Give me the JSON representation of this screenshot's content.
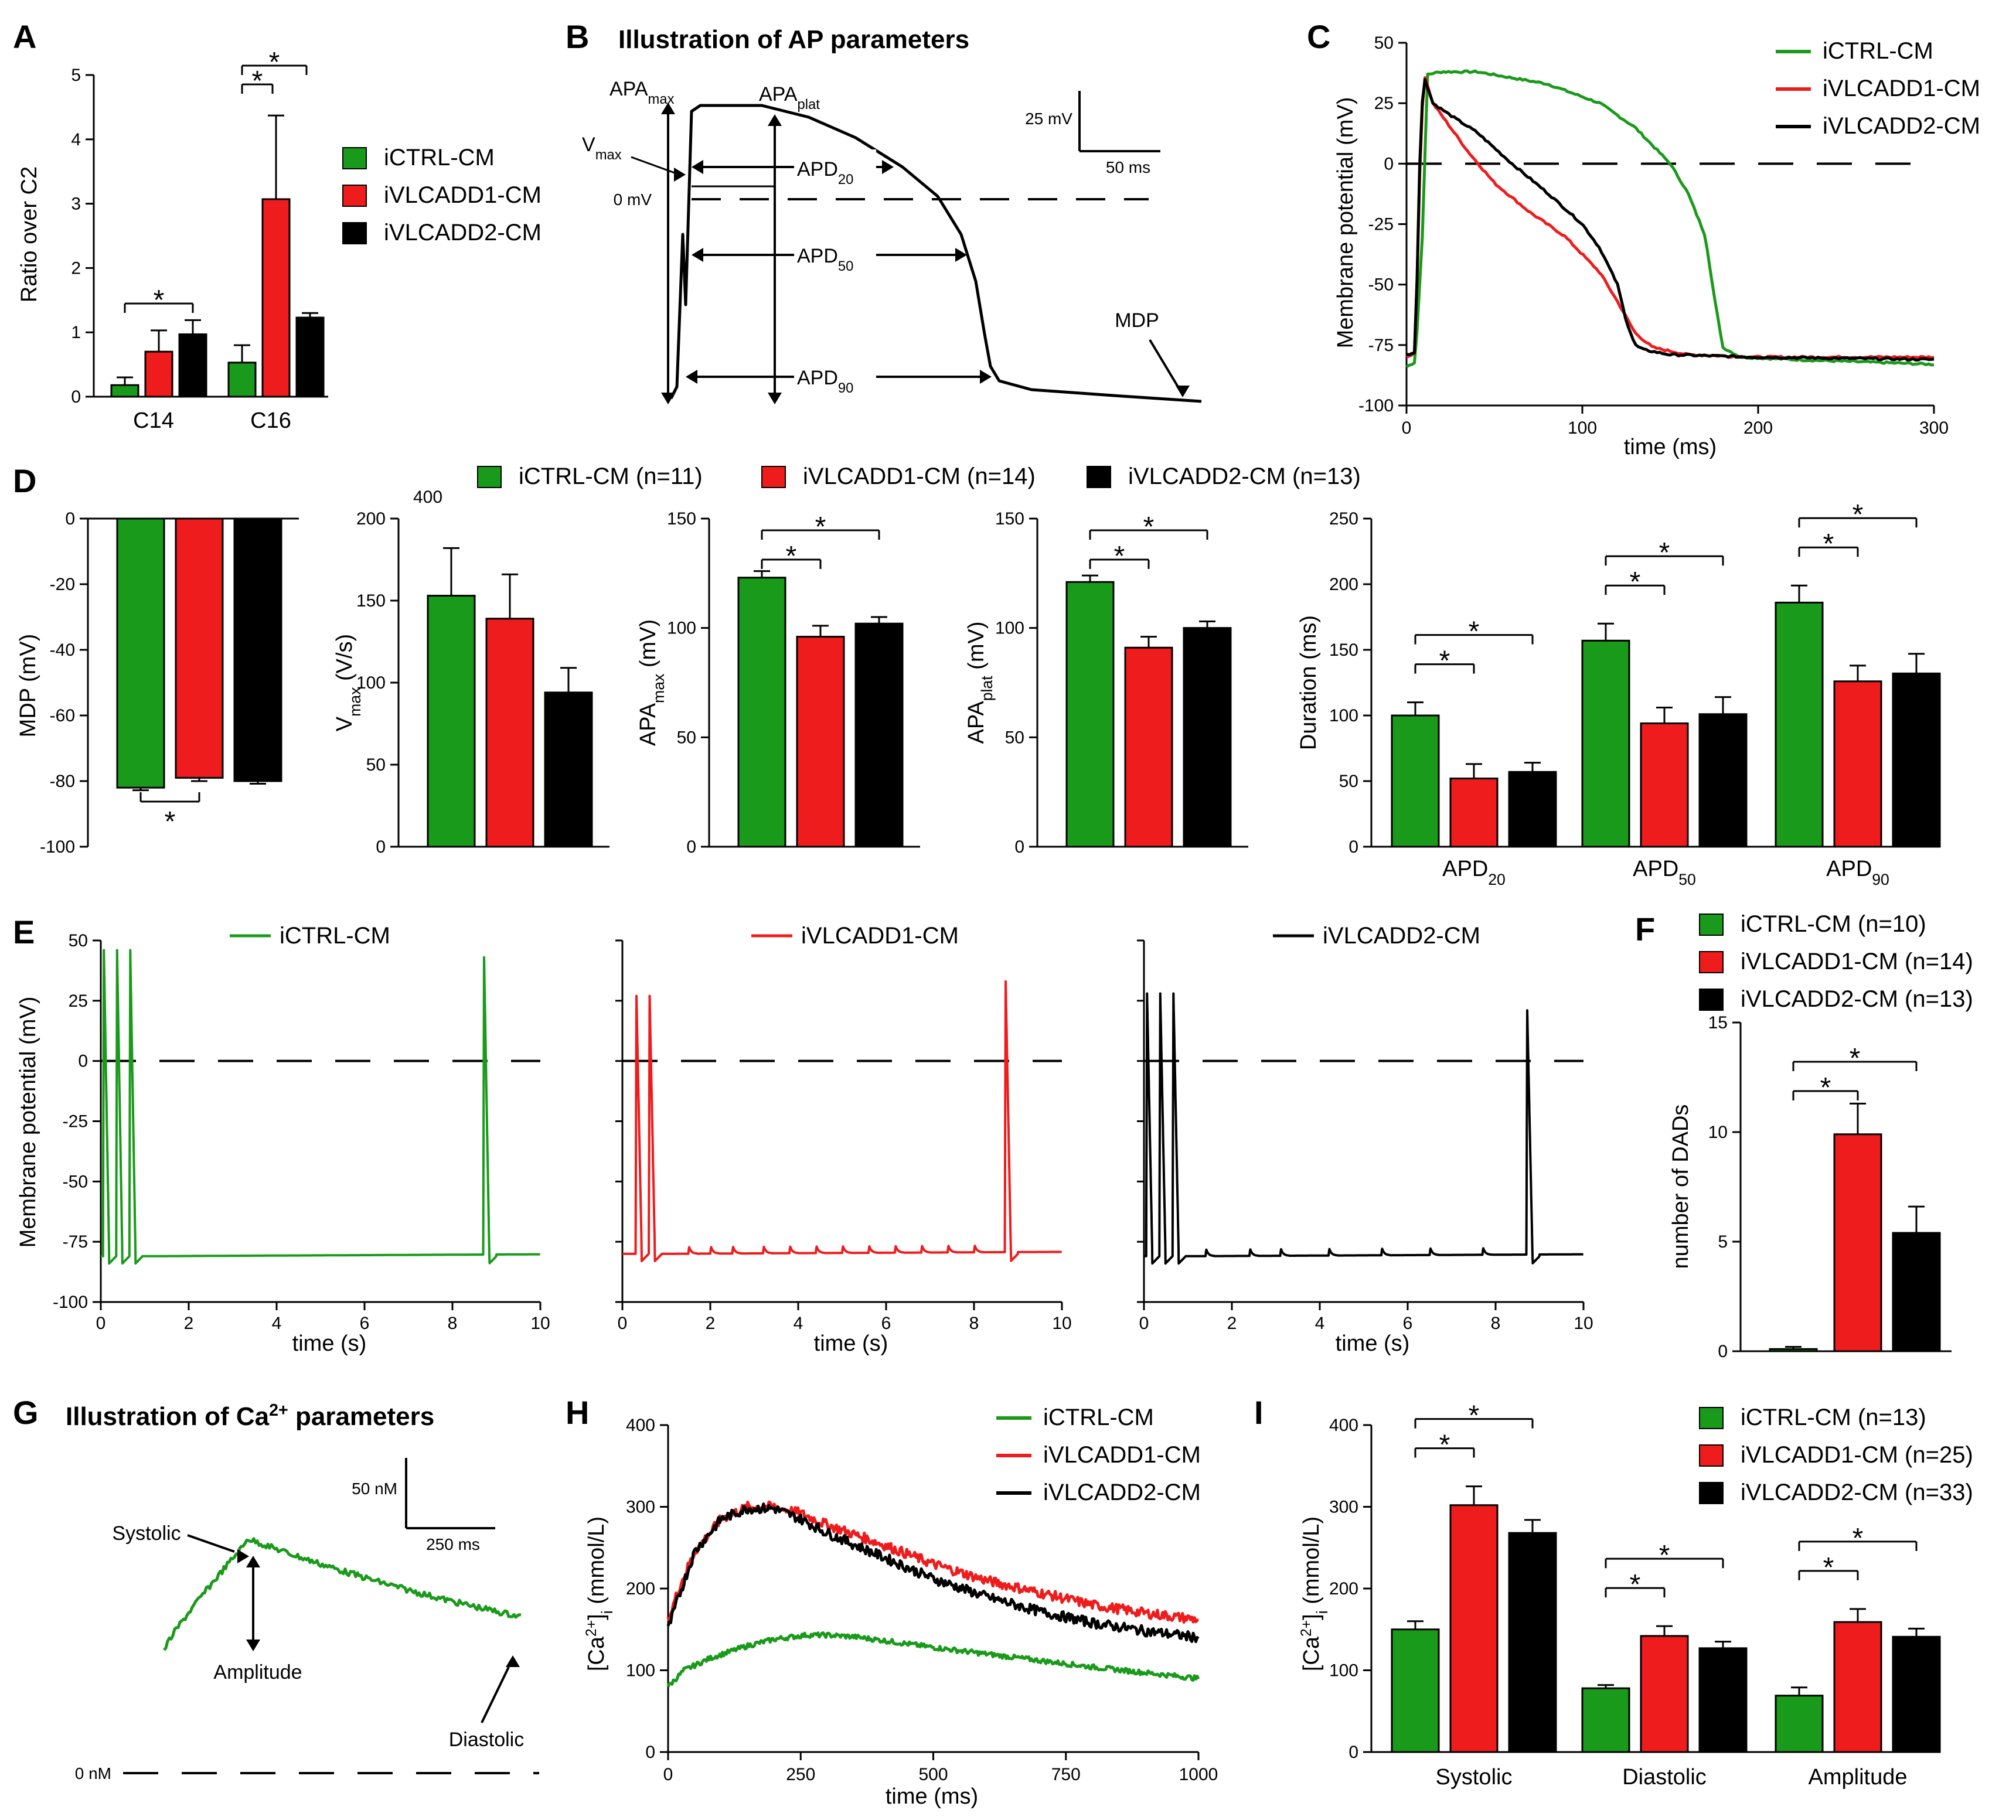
{
  "colors": {
    "green": "#1a9a1a",
    "red": "#ee1c1c",
    "black": "#000000"
  },
  "panel_letters": [
    "A",
    "B",
    "C",
    "D",
    "E",
    "F",
    "G",
    "H",
    "I"
  ],
  "groups": [
    "iCTRL-CM",
    "iVLCADD1-CM",
    "iVLCADD2-CM"
  ],
  "chart_data": [
    {
      "id": "A",
      "type": "bar",
      "ylabel": "Ratio over C2",
      "ylim": [
        0,
        5
      ],
      "yticks": [
        "0",
        "1",
        "2",
        "3",
        "4",
        "5"
      ],
      "categories": [
        "C14",
        "C16"
      ],
      "series": [
        {
          "name": "iCTRL-CM",
          "values": [
            0.18,
            0.53
          ],
          "errors": [
            0.12,
            0.27
          ]
        },
        {
          "name": "iVLCADD1-CM",
          "values": [
            0.7,
            3.07
          ],
          "errors": [
            0.33,
            1.3
          ]
        },
        {
          "name": "iVLCADD2-CM",
          "values": [
            0.97,
            1.23
          ],
          "errors": [
            0.22,
            0.07
          ]
        }
      ],
      "legend": [
        "iCTRL-CM",
        "iVLCADD1-CM",
        "iVLCADD2-CM"
      ],
      "sig_marks": [
        "*",
        "*",
        "*"
      ]
    },
    {
      "id": "B",
      "type": "illustration",
      "title": "Illustration of AP parameters",
      "labels": {
        "apamax": "APA",
        "apamax_sub": "max",
        "apaplat": "APA",
        "apaplat_sub": "plat",
        "vmax": "V",
        "vmax_sub": "max",
        "zero": "0 mV",
        "apd20": "APD",
        "apd20_sub": "20",
        "apd50": "APD",
        "apd50_sub": "50",
        "apd90": "APD",
        "apd90_sub": "90",
        "mdp": "MDP",
        "scale_v": "25 mV",
        "scale_t": "50 ms"
      }
    },
    {
      "id": "C",
      "type": "line",
      "xlabel": "time (ms)",
      "ylabel": "Membrane potential (mV)",
      "xlim": [
        0,
        300
      ],
      "ylim": [
        -100,
        50
      ],
      "xticks": [
        "0",
        "100",
        "200",
        "300"
      ],
      "yticks": [
        "50",
        "25",
        "0",
        "-25",
        "-50",
        "-75",
        "-100"
      ],
      "series": [
        {
          "name": "iCTRL-CM",
          "x": [
            0,
            5,
            9,
            12,
            20,
            40,
            80,
            110,
            130,
            150,
            160,
            170,
            175,
            180,
            190,
            220,
            260,
            300
          ],
          "y": [
            -84,
            -82,
            -30,
            37,
            38,
            38,
            33,
            25,
            15,
            0,
            -12,
            -30,
            -55,
            -76,
            -80,
            -81,
            -82,
            -83
          ]
        },
        {
          "name": "iVLCADD1-CM",
          "x": [
            0,
            5,
            8,
            10,
            15,
            25,
            35,
            50,
            70,
            90,
            110,
            120,
            130,
            140,
            160,
            200,
            300
          ],
          "y": [
            -80,
            -78,
            10,
            37,
            25,
            15,
            5,
            -8,
            -20,
            -30,
            -45,
            -57,
            -70,
            -76,
            -79,
            -80,
            -80
          ]
        },
        {
          "name": "iVLCADD2-CM",
          "x": [
            0,
            5,
            8,
            10,
            15,
            25,
            40,
            60,
            80,
            100,
            110,
            120,
            125,
            130,
            135,
            150,
            200,
            300
          ],
          "y": [
            -79,
            -78,
            15,
            36,
            25,
            20,
            13,
            0,
            -12,
            -25,
            -35,
            -50,
            -65,
            -75,
            -77,
            -79,
            -80,
            -81
          ]
        }
      ],
      "legend": [
        "iCTRL-CM",
        "iVLCADD1-CM",
        "iVLCADD2-CM"
      ]
    },
    {
      "id": "D",
      "type": "bar",
      "legend": [
        "iCTRL-CM (n=11)",
        "iVLCADD1-CM (n=14)",
        "iVLCADD2-CM (n=13)"
      ],
      "subplots": [
        {
          "ylabel": "MDP (mV)",
          "ylim": [
            -100,
            0
          ],
          "yticks": [
            "0",
            "-20",
            "-40",
            "-60",
            "-80",
            "-100"
          ],
          "values": [
            -82,
            -79,
            -80
          ],
          "errors": [
            0.8,
            1.0,
            0.8
          ],
          "sig_marks": [
            "*"
          ]
        },
        {
          "ylabel": "V",
          "ylabel_sub": "max",
          "ylabel_unit": "(V/s)",
          "ylim": [
            0,
            200
          ],
          "extra_tick": "400",
          "yticks": [
            "0",
            "50",
            "100",
            "150",
            "200"
          ],
          "values": [
            153,
            139,
            94
          ],
          "errors": [
            29,
            27,
            15
          ],
          "sig_marks": []
        },
        {
          "ylabel": "APA",
          "ylabel_sub": "max",
          "ylabel_unit": "(mV)",
          "ylim": [
            0,
            150
          ],
          "yticks": [
            "0",
            "50",
            "100",
            "150"
          ],
          "values": [
            123,
            96,
            102
          ],
          "errors": [
            3,
            5,
            3
          ],
          "sig_marks": [
            "*",
            "*"
          ]
        },
        {
          "ylabel": "APA",
          "ylabel_sub": "plat",
          "ylabel_unit": "(mV)",
          "ylim": [
            0,
            150
          ],
          "yticks": [
            "0",
            "50",
            "100",
            "150"
          ],
          "values": [
            121,
            91,
            100
          ],
          "errors": [
            3,
            5,
            3
          ],
          "sig_marks": [
            "*",
            "*"
          ]
        },
        {
          "ylabel": "Duration (ms)",
          "ylim": [
            0,
            250
          ],
          "yticks": [
            "0",
            "50",
            "100",
            "150",
            "200",
            "250"
          ],
          "categories": [
            "APD",
            "APD",
            "APD"
          ],
          "category_subs": [
            "20",
            "50",
            "90"
          ],
          "series": [
            {
              "name": "iCTRL-CM",
              "values": [
                100,
                157,
                186
              ],
              "errors": [
                10,
                13,
                13
              ]
            },
            {
              "name": "iVLCADD1-CM",
              "values": [
                52,
                94,
                126
              ],
              "errors": [
                11,
                12,
                12
              ]
            },
            {
              "name": "iVLCADD2-CM",
              "values": [
                57,
                101,
                132
              ],
              "errors": [
                7,
                13,
                15
              ]
            }
          ],
          "sig_marks": [
            "*",
            "*",
            "*",
            "*",
            "*",
            "*"
          ]
        }
      ]
    },
    {
      "id": "E",
      "type": "line",
      "ylabel": "Membrane potential (mV)",
      "xlabel": "time (s)",
      "xlim": [
        0,
        10
      ],
      "ylim": [
        -100,
        50
      ],
      "xticks": [
        "0",
        "2",
        "4",
        "6",
        "8",
        "10"
      ],
      "yticks": [
        "50",
        "25",
        "0",
        "-25",
        "-50",
        "-75",
        "-100"
      ],
      "traces": [
        {
          "name": "iCTRL-CM",
          "spike_times": [
            0.05,
            0.35,
            0.65,
            8.7
          ],
          "spike_peaks": [
            46,
            46,
            46,
            43
          ],
          "rest": -81,
          "dad_times": []
        },
        {
          "name": "iVLCADD1-CM",
          "spike_times": [
            0.3,
            0.6,
            8.7
          ],
          "spike_peaks": [
            27,
            27,
            33
          ],
          "rest": -80,
          "dad_times": [
            1.5,
            2.0,
            2.5,
            3.2,
            3.8,
            4.4,
            5.0,
            5.6,
            6.2,
            6.8,
            7.4,
            8.0
          ]
        },
        {
          "name": "iVLCADD2-CM",
          "spike_times": [
            0.05,
            0.35,
            0.65,
            8.7
          ],
          "spike_peaks": [
            28,
            28,
            28,
            21
          ],
          "rest": -81,
          "dad_times": [
            1.4,
            2.4,
            3.1,
            4.2,
            5.4,
            6.5,
            7.7
          ]
        }
      ]
    },
    {
      "id": "F",
      "type": "bar",
      "ylabel": "number of DADs",
      "ylim": [
        0,
        15
      ],
      "yticks": [
        "0",
        "5",
        "10",
        "15"
      ],
      "values": [
        0.1,
        9.9,
        5.4
      ],
      "errors": [
        0.1,
        1.4,
        1.2
      ],
      "legend": [
        "iCTRL-CM (n=10)",
        "iVLCADD1-CM (n=14)",
        "iVLCADD2-CM (n=13)"
      ],
      "sig_marks": [
        "*",
        "*"
      ]
    },
    {
      "id": "G",
      "type": "illustration",
      "title": "Illustration of Ca",
      "title_sup": "2+",
      "title_end": " parameters",
      "labels": {
        "systolic": "Systolic",
        "amplitude": "Amplitude",
        "diastolic": "Diastolic",
        "zero": "0 nM",
        "scale_c": "50 nM",
        "scale_t": "250 ms"
      }
    },
    {
      "id": "H",
      "type": "line",
      "xlabel": "time (ms)",
      "ylabel": "[Ca",
      "ylabel_sup": "2+",
      "ylabel_mid": "]",
      "ylabel_sub": "i",
      "ylabel_unit": " (mmol/L)",
      "xlim": [
        0,
        1000
      ],
      "ylim": [
        0,
        400
      ],
      "xticks": [
        "0",
        "250",
        "500",
        "750",
        "1000"
      ],
      "yticks": [
        "0",
        "100",
        "200",
        "300",
        "400"
      ],
      "series": [
        {
          "name": "iCTRL-CM",
          "x": [
            0,
            30,
            80,
            150,
            200,
            260,
            300,
            350,
            400,
            500,
            600,
            700,
            800,
            900,
            1000
          ],
          "y": [
            80,
            100,
            115,
            130,
            138,
            143,
            143,
            141,
            137,
            128,
            120,
            112,
            104,
            97,
            90
          ]
        },
        {
          "name": "iVLCADD1-CM",
          "x": [
            0,
            20,
            50,
            100,
            150,
            200,
            250,
            300,
            400,
            500,
            600,
            700,
            800,
            900,
            1000
          ],
          "y": [
            160,
            200,
            245,
            285,
            300,
            300,
            292,
            278,
            255,
            230,
            210,
            195,
            180,
            170,
            162
          ]
        },
        {
          "name": "iVLCADD2-CM",
          "x": [
            0,
            20,
            50,
            100,
            150,
            200,
            250,
            300,
            400,
            500,
            600,
            700,
            800,
            900,
            1000
          ],
          "y": [
            150,
            190,
            245,
            285,
            298,
            298,
            285,
            268,
            240,
            212,
            190,
            172,
            158,
            148,
            140
          ]
        }
      ],
      "legend": [
        "iCTRL-CM",
        "iVLCADD1-CM",
        "iVLCADD2-CM"
      ]
    },
    {
      "id": "I",
      "type": "bar",
      "ylabel": "[Ca",
      "ylabel_sup": "2+",
      "ylabel_mid": "]",
      "ylabel_sub": "i",
      "ylabel_unit": " (mmol/L)",
      "ylim": [
        0,
        400
      ],
      "yticks": [
        "0",
        "100",
        "200",
        "300",
        "400"
      ],
      "categories": [
        "Systolic",
        "Diastolic",
        "Amplitude"
      ],
      "series": [
        {
          "name": "iCTRL-CM",
          "values": [
            150,
            78,
            69
          ],
          "errors": [
            10,
            4,
            10
          ]
        },
        {
          "name": "iVLCADD1-CM",
          "values": [
            302,
            142,
            159
          ],
          "errors": [
            23,
            12,
            16
          ]
        },
        {
          "name": "iVLCADD2-CM",
          "values": [
            268,
            127,
            141
          ],
          "errors": [
            16,
            8,
            10
          ]
        }
      ],
      "legend": [
        "iCTRL-CM (n=13)",
        "iVLCADD1-CM (n=25)",
        "iVLCADD2-CM (n=33)"
      ],
      "sig_marks": [
        "*",
        "*",
        "*",
        "*",
        "*",
        "*"
      ]
    }
  ]
}
